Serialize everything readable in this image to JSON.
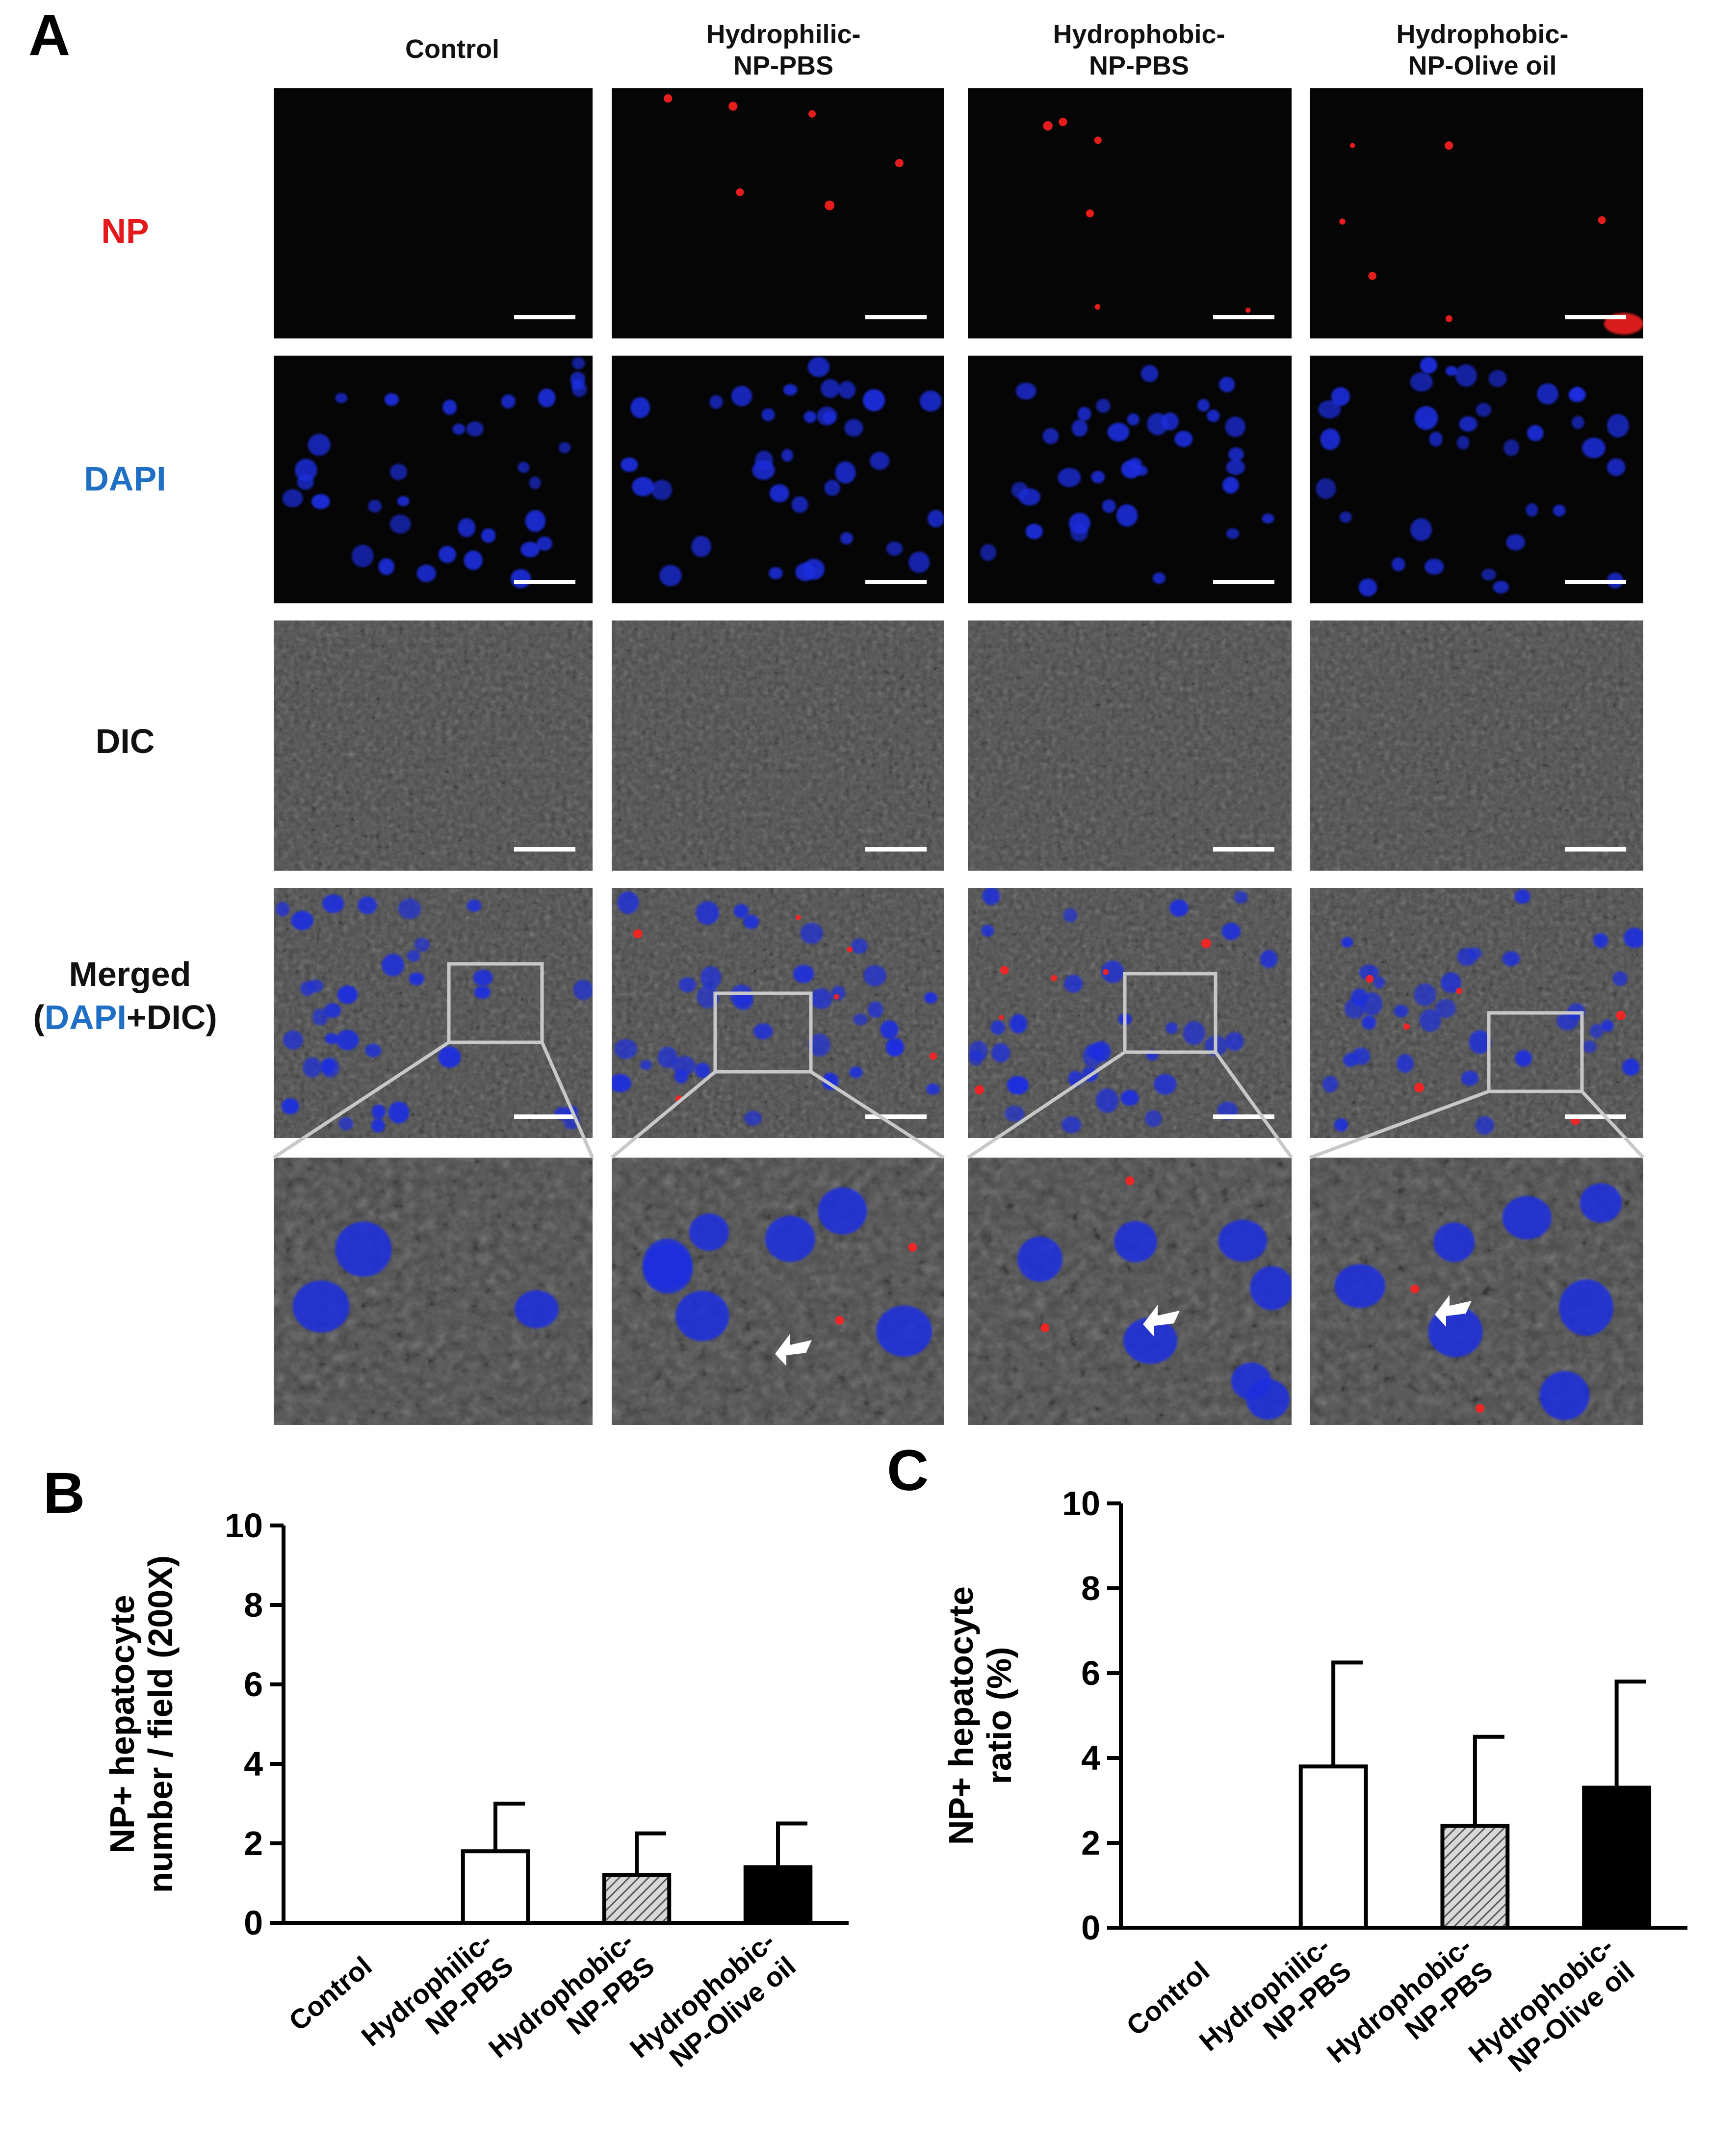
{
  "panels": {
    "a": {
      "letter": "A",
      "column_headers": [
        [
          "Control"
        ],
        [
          "Hydrophilic-",
          "NP-PBS"
        ],
        [
          "Hydrophobic-",
          "NP-PBS"
        ],
        [
          "Hydrophobic-",
          "NP-Olive oil"
        ]
      ],
      "rows": [
        {
          "key": "np",
          "parts": [
            {
              "text": "NP",
              "color": "#e3191b"
            }
          ]
        },
        {
          "key": "dapi",
          "parts": [
            {
              "text": "DAPI",
              "color": "#1f6fc5"
            }
          ]
        },
        {
          "key": "dic",
          "parts": [
            {
              "text": "DIC",
              "color": "#111111"
            }
          ]
        },
        {
          "key": "merged",
          "line1": "Merged",
          "parts": [
            {
              "text": "(",
              "color": "#111111"
            },
            {
              "text": "DAPI",
              "color": "#1f6fc5"
            },
            {
              "text": "+DIC)",
              "color": "#111111"
            }
          ]
        }
      ]
    },
    "b": {
      "letter": "B"
    },
    "c": {
      "letter": "C"
    }
  },
  "colors": {
    "np_signal": "#ff2020",
    "nucleus": "#1f2ee0",
    "dic_gray": "#5a5a5a",
    "scale_bar": "#ffffff",
    "zoom_box": "#c8c8c8",
    "hatched_bar": "#9a9a9a",
    "solid_bar": "#000000"
  },
  "chart_data": [
    {
      "type": "bar",
      "panel": "B",
      "categories": [
        [
          "Control"
        ],
        [
          "Hydrophilic-",
          "NP-PBS"
        ],
        [
          "Hydrophobic-",
          "NP-PBS"
        ],
        [
          "Hydrophobic-",
          "NP-Olive oil"
        ]
      ],
      "values": [
        0,
        1.8,
        1.2,
        1.4
      ],
      "errors": [
        0,
        1.2,
        1.05,
        1.1
      ],
      "fills": [
        "none",
        "white",
        "hatched",
        "black"
      ],
      "ylabel": [
        "NP+ hepatocyte",
        "number / field (200X)"
      ],
      "ylim": [
        0,
        10
      ],
      "yticks": [
        0,
        2,
        4,
        6,
        8,
        10
      ],
      "grid": false
    },
    {
      "type": "bar",
      "panel": "C",
      "categories": [
        [
          "Control"
        ],
        [
          "Hydrophilic-",
          "NP-PBS"
        ],
        [
          "Hydrophobic-",
          "NP-PBS"
        ],
        [
          "Hydrophobic-",
          "NP-Olive oil"
        ]
      ],
      "values": [
        0,
        3.8,
        2.4,
        3.3
      ],
      "errors": [
        0,
        2.45,
        2.1,
        2.5
      ],
      "fills": [
        "none",
        "white",
        "hatched",
        "black"
      ],
      "ylabel": [
        "NP+ hepatocyte",
        "ratio (%)"
      ],
      "ylim": [
        0,
        10
      ],
      "yticks": [
        0,
        2,
        4,
        6,
        8,
        10
      ],
      "grid": false
    }
  ]
}
